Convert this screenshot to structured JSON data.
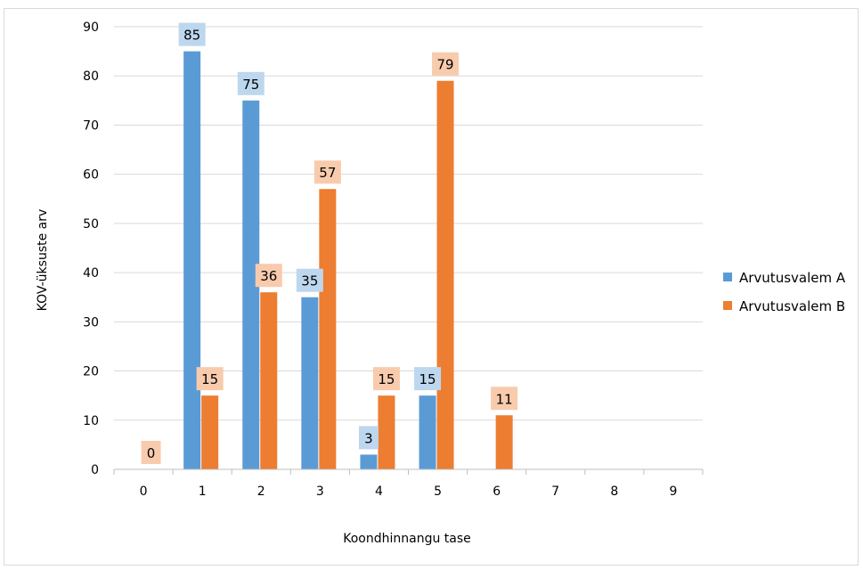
{
  "chart_data": {
    "type": "bar",
    "xlabel": "Koondhinnangu tase",
    "ylabel": "KOV-üksuste arv",
    "categories": [
      "0",
      "1",
      "2",
      "3",
      "4",
      "5",
      "6",
      "7",
      "8",
      "9"
    ],
    "ylim": [
      0,
      90
    ],
    "yticks": [
      0,
      10,
      20,
      30,
      40,
      50,
      60,
      70,
      80,
      90
    ],
    "grid": true,
    "legend_position": "right",
    "series": [
      {
        "name": "Arvutusvalem A",
        "color": "#5b9bd5",
        "label_bg": "#bdd7ee",
        "values": [
          null,
          85,
          75,
          35,
          3,
          15,
          null,
          null,
          null,
          null
        ]
      },
      {
        "name": "Arvutusvalem B",
        "color": "#ed7d31",
        "label_bg": "#f8cbad",
        "values": [
          0,
          15,
          36,
          57,
          15,
          79,
          11,
          null,
          null,
          null
        ]
      }
    ]
  }
}
